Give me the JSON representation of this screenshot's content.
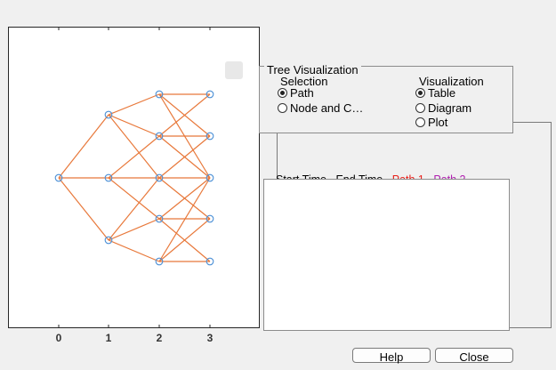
{
  "plot": {
    "xticks": [
      "0",
      "1",
      "2",
      "3"
    ],
    "edge_color": "#e8783a",
    "node_color": "#4a8fd6"
  },
  "tree_panel": {
    "title": "Tree Visualization",
    "selection": {
      "title": "Selection",
      "options": [
        "Path",
        "Node and C…"
      ],
      "selected": 0
    },
    "visualization": {
      "title": "Visualization",
      "options": [
        "Table",
        "Diagram",
        "Plot"
      ],
      "selected": 0
    }
  },
  "table": {
    "headers": [
      "Start Time",
      "End Time",
      "Path 1",
      "Path 2"
    ],
    "header_colors": [
      "#000000",
      "#000000",
      "#e8201a",
      "#b020b0"
    ]
  },
  "buttons": {
    "help": "Help",
    "close": "Close"
  }
}
